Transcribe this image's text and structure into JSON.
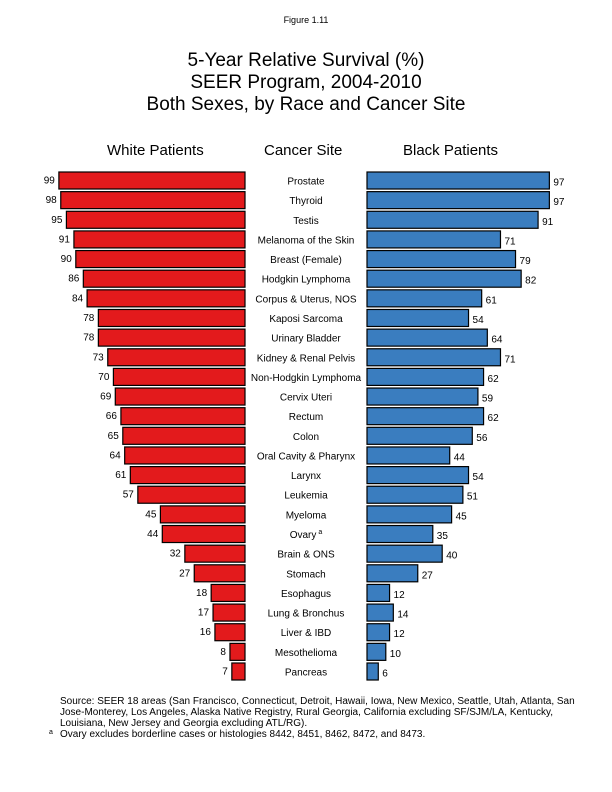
{
  "figure_label": "Figure 1.11",
  "chart_data": {
    "type": "bar",
    "title": [
      "5-Year Relative Survival (%)",
      "SEER Program, 2004-2010",
      "Both Sexes, by Race and Cancer Site"
    ],
    "column_headers": {
      "left": "White Patients",
      "center": "Cancer Site",
      "right": "Black Patients"
    },
    "categories": [
      "Prostate",
      "Thyroid",
      "Testis",
      "Melanoma of the Skin",
      "Breast (Female)",
      "Hodgkin Lymphoma",
      "Corpus & Uterus, NOS",
      "Kaposi Sarcoma",
      "Urinary Bladder",
      "Kidney & Renal Pelvis",
      "Non-Hodgkin Lymphoma",
      "Cervix Uteri",
      "Rectum",
      "Colon",
      "Oral Cavity & Pharynx",
      "Larynx",
      "Leukemia",
      "Myeloma",
      "Ovary",
      "Brain & ONS",
      "Stomach",
      "Esophagus",
      "Lung & Bronchus",
      "Liver & IBD",
      "Mesothelioma",
      "Pancreas"
    ],
    "category_footnote_marks": {
      "Ovary": "a"
    },
    "series": [
      {
        "name": "White Patients",
        "color": "#e31a1c",
        "values": [
          99,
          98,
          95,
          91,
          90,
          86,
          84,
          78,
          78,
          73,
          70,
          69,
          66,
          65,
          64,
          61,
          57,
          45,
          44,
          32,
          27,
          18,
          17,
          16,
          8,
          7
        ]
      },
      {
        "name": "Black Patients",
        "color": "#3a7dbf",
        "values": [
          97,
          97,
          91,
          71,
          79,
          82,
          61,
          54,
          64,
          71,
          62,
          59,
          62,
          56,
          44,
          54,
          51,
          45,
          35,
          40,
          27,
          12,
          14,
          12,
          10,
          6
        ]
      }
    ],
    "xlim": [
      0,
      100
    ],
    "grid": false
  },
  "notes": {
    "source": "Source: SEER 18 areas (San Francisco, Connecticut, Detroit, Hawaii, Iowa, New Mexico, Seattle, Utah, Atlanta, San Jose-Monterey, Los Angeles, Alaska Native Registry, Rural Georgia, California excluding SF/SJM/LA, Kentucky, Louisiana, New Jersey and Georgia excluding ATL/RG).",
    "footnote_mark": "a",
    "footnote": "Ovary excludes borderline cases or histologies 8442, 8451, 8462, 8472, and 8473."
  }
}
